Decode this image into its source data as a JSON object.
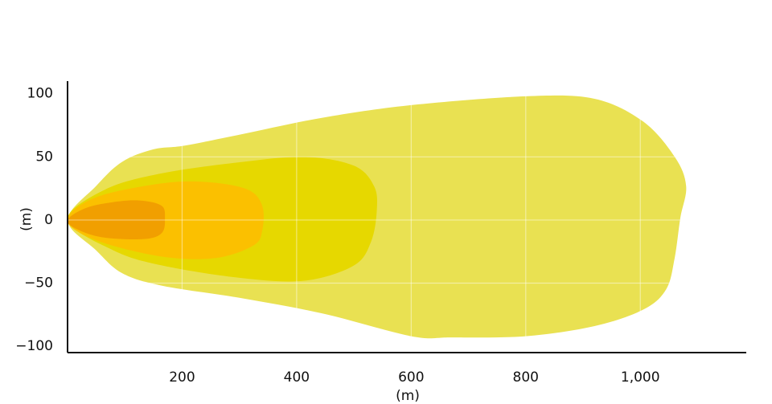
{
  "chart_data": {
    "type": "contour",
    "x_label": "(m)",
    "y_label": "(m)",
    "xlim": [
      0,
      1185
    ],
    "ylim": [
      -105,
      110
    ],
    "xticks": [
      200,
      400,
      600,
      800,
      {
        "value": 1000,
        "label": "1,000"
      }
    ],
    "yticks": [
      100,
      50,
      0,
      {
        "value": -50,
        "label": "−50"
      },
      {
        "value": -100,
        "label": "−100"
      }
    ],
    "grid": true,
    "series": [
      {
        "color": "#e9e152",
        "x": [
          0,
          50,
          95,
          150,
          205,
          305,
          445,
          600,
          800,
          920,
          1005,
          1060,
          1080,
          1070,
          1060,
          1045,
          1005,
          920,
          800,
          670,
          600,
          445,
          305,
          165,
          95,
          50
        ],
        "values": [
          0,
          27,
          46,
          56,
          59,
          68,
          81,
          91,
          98,
          96,
          78,
          50,
          27,
          2,
          -30,
          -55,
          -71,
          -84,
          -92,
          -93,
          -92,
          -74,
          -62,
          -52,
          -42,
          -24
        ]
      },
      {
        "color": "#e6d800",
        "x": [
          0,
          65,
          165,
          305,
          415,
          500,
          535,
          540,
          530,
          500,
          415,
          305,
          165,
          80
        ],
        "values": [
          0,
          24,
          37,
          46,
          50,
          43,
          27,
          8,
          -17,
          -36,
          -48,
          -46,
          -36,
          -24
        ]
      },
      {
        "color": "#fbc000",
        "x": [
          0,
          50,
          165,
          245,
          315,
          340,
          340,
          325,
          260,
          165,
          50
        ],
        "values": [
          0,
          18,
          29,
          30,
          24,
          11,
          -8,
          -20,
          -30,
          -29,
          -16
        ]
      },
      {
        "color": "#f19f00",
        "x": [
          0,
          35,
          95,
          135,
          165,
          170,
          165,
          135,
          65,
          20
        ],
        "values": [
          0,
          10,
          15,
          15,
          11,
          2,
          -10,
          -15,
          -14,
          -8
        ]
      }
    ]
  }
}
